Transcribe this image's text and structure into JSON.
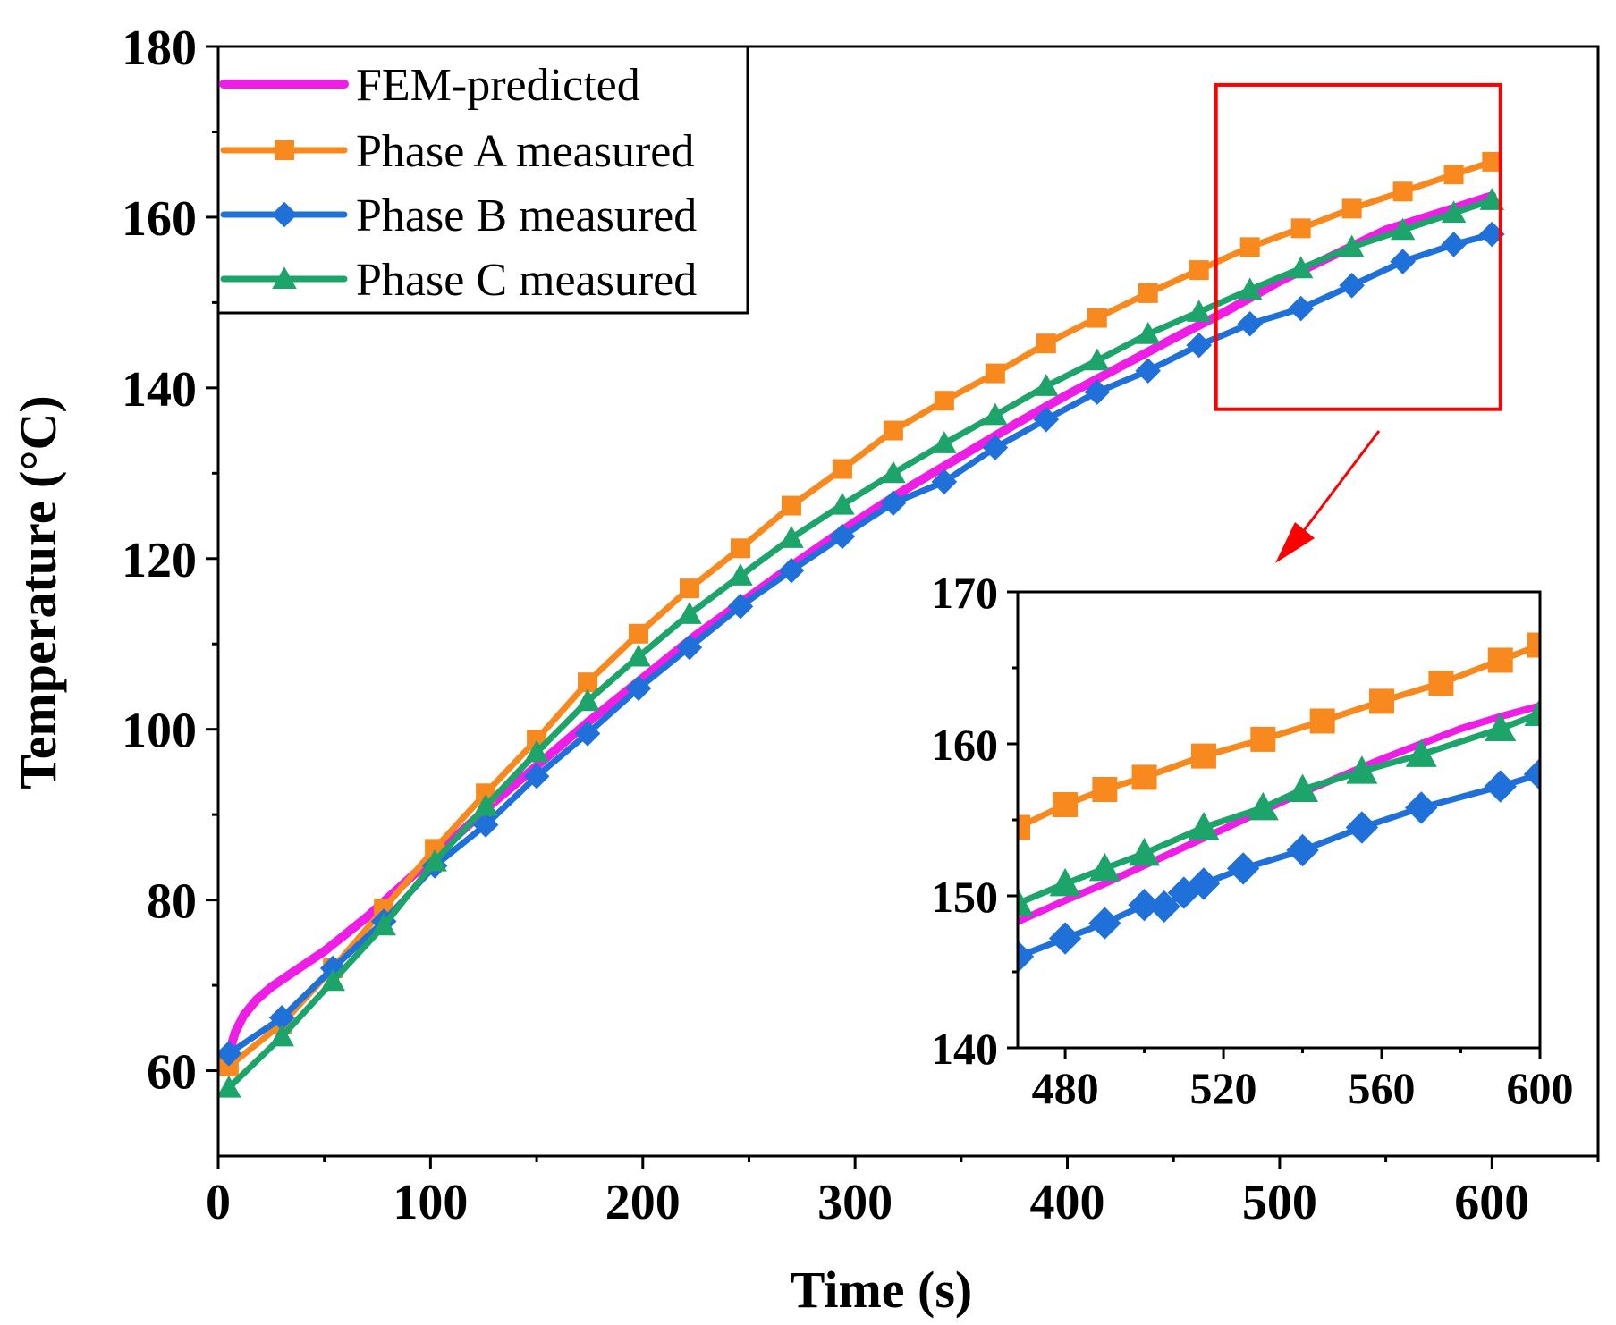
{
  "chart_data": [
    {
      "type": "line",
      "title": "",
      "xlabel": "Time (s)",
      "ylabel": "Temperature (°C)",
      "xlim": [
        0,
        650
      ],
      "ylim": [
        50,
        180
      ],
      "xticks": [
        0,
        100,
        200,
        300,
        400,
        500,
        600
      ],
      "yticks": [
        60,
        80,
        100,
        120,
        140,
        160,
        180
      ],
      "legend_position": "top-left",
      "series": [
        {
          "name": "FEM-predicted",
          "color": "#ee1ee6",
          "marker": "none",
          "x": [
            5,
            8,
            12,
            18,
            25,
            35,
            50,
            70,
            90,
            110,
            130,
            150,
            175,
            200,
            225,
            250,
            275,
            300,
            325,
            350,
            375,
            400,
            425,
            450,
            475,
            500,
            525,
            550,
            575,
            600
          ],
          "y": [
            62,
            64.5,
            66.5,
            68.3,
            69.8,
            71.5,
            74,
            78,
            82.5,
            87,
            91.5,
            95.7,
            101,
            106,
            111,
            115.5,
            120,
            124.3,
            128.3,
            132,
            135.7,
            139.2,
            142.5,
            145.8,
            149,
            152.5,
            155.5,
            158.5,
            160.5,
            162.5
          ]
        },
        {
          "name": "Phase A measured",
          "color": "#f7891f",
          "marker": "square",
          "x": [
            5,
            30,
            54,
            78,
            102,
            126,
            150,
            174,
            198,
            222,
            246,
            270,
            294,
            318,
            342,
            366,
            390,
            414,
            438,
            462,
            486,
            510,
            534,
            558,
            582,
            600
          ],
          "y": [
            60.5,
            65.5,
            72,
            79,
            86,
            92.5,
            98.8,
            105.5,
            111.2,
            116.5,
            121.2,
            126.2,
            130.5,
            135,
            138.5,
            141.7,
            145.2,
            148.2,
            151.1,
            153.8,
            156.5,
            158.7,
            161,
            163,
            165,
            166.5
          ]
        },
        {
          "name": "Phase B measured",
          "color": "#1f70d8",
          "marker": "diamond",
          "x": [
            5,
            30,
            54,
            78,
            102,
            126,
            150,
            174,
            198,
            222,
            246,
            270,
            294,
            318,
            342,
            366,
            390,
            414,
            438,
            462,
            486,
            510,
            534,
            558,
            582,
            600
          ],
          "y": [
            62,
            66.2,
            72,
            77.5,
            84,
            88.8,
            94.5,
            99.5,
            104.8,
            109.6,
            114.4,
            118.6,
            122.6,
            126.5,
            129,
            133,
            136.3,
            139.5,
            142,
            145,
            147.5,
            149.3,
            152,
            154.8,
            156.8,
            158
          ]
        },
        {
          "name": "Phase C measured",
          "color": "#1da46a",
          "marker": "triangle",
          "x": [
            5,
            30,
            54,
            78,
            102,
            126,
            150,
            174,
            198,
            222,
            246,
            270,
            294,
            318,
            342,
            366,
            390,
            414,
            438,
            462,
            486,
            510,
            534,
            558,
            582,
            600
          ],
          "y": [
            58,
            64,
            70.5,
            77,
            84.5,
            91,
            97.3,
            103.3,
            108.5,
            113.5,
            118,
            122.4,
            126.3,
            130,
            133.5,
            136.8,
            140.2,
            143.2,
            146.3,
            148.9,
            151.5,
            154,
            156.5,
            158.5,
            160.5,
            162
          ]
        }
      ]
    },
    {
      "type": "line",
      "title": "",
      "xlabel": "",
      "ylabel": "",
      "xlim": [
        468,
        600
      ],
      "ylim": [
        140,
        170
      ],
      "xticks": [
        480,
        520,
        560,
        600
      ],
      "yticks": [
        140,
        150,
        160,
        170
      ],
      "series": [
        {
          "name": "FEM-predicted",
          "color": "#ee1ee6",
          "marker": "none",
          "x": [
            468,
            480,
            490,
            500,
            510,
            520,
            530,
            540,
            550,
            560,
            570,
            580,
            590,
            600
          ],
          "y": [
            148.3,
            149.7,
            150.8,
            152,
            153.2,
            154.4,
            155.6,
            156.8,
            157.9,
            159,
            160,
            161,
            161.8,
            162.5
          ]
        },
        {
          "name": "Phase A measured",
          "color": "#f7891f",
          "marker": "square",
          "x": [
            468,
            480,
            490,
            500,
            515,
            530,
            545,
            560,
            575,
            590,
            600
          ],
          "y": [
            154.5,
            156,
            157,
            157.8,
            159.2,
            160.3,
            161.5,
            162.8,
            164,
            165.5,
            166.5
          ]
        },
        {
          "name": "Phase B measured",
          "color": "#1f70d8",
          "marker": "diamond",
          "x": [
            468,
            480,
            490,
            500,
            505,
            510,
            515,
            525,
            540,
            555,
            570,
            590,
            600
          ],
          "y": [
            146,
            147.2,
            148.2,
            149.4,
            149.3,
            150.2,
            150.8,
            151.8,
            153,
            154.5,
            155.8,
            157.2,
            158
          ]
        },
        {
          "name": "Phase C measured",
          "color": "#1da46a",
          "marker": "triangle",
          "x": [
            468,
            480,
            490,
            500,
            515,
            530,
            540,
            555,
            570,
            590,
            600
          ],
          "y": [
            149.5,
            150.8,
            151.8,
            152.8,
            154.5,
            155.8,
            157,
            158.2,
            159.3,
            161,
            162
          ]
        }
      ]
    }
  ],
  "zoom_box": {
    "x_range": [
      470,
      604
    ],
    "y_range": [
      137.5,
      175.5
    ],
    "color": "#ff0000"
  }
}
